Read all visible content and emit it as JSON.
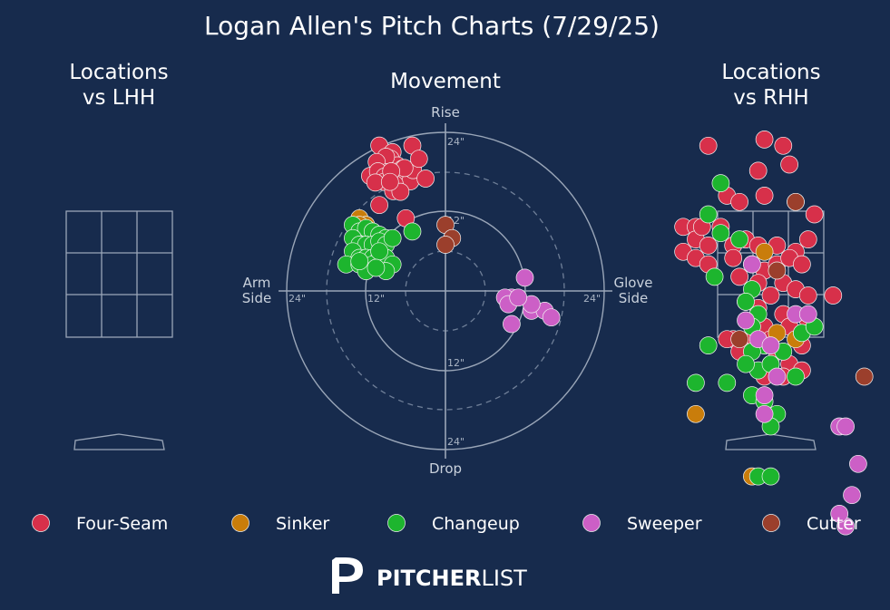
{
  "title": "Logan Allen's Pitch Charts (7/29/25)",
  "panels": {
    "lhh_title": [
      "Locations",
      "vs LHH"
    ],
    "movement_title": "Movement",
    "rhh_title": [
      "Locations",
      "vs RHH"
    ]
  },
  "movement_axes": {
    "top": "Rise",
    "bottom": "Drop",
    "left": [
      "Arm",
      "Side"
    ],
    "right": [
      "Glove",
      "Side"
    ],
    "ticks": {
      "top24": "24\"",
      "top12": "12\"",
      "bottom12": "12\"",
      "bottom24": "24\"",
      "left24": "24\"",
      "left12": "12\"",
      "right24": "24\""
    }
  },
  "legend": [
    {
      "name": "Four-Seam",
      "color": "#d7304a"
    },
    {
      "name": "Sinker",
      "color": "#c97d0b"
    },
    {
      "name": "Changeup",
      "color": "#1db52e"
    },
    {
      "name": "Sweeper",
      "color": "#cc5fc6"
    },
    {
      "name": "Cutter",
      "color": "#9b3f2c"
    }
  ],
  "brand": {
    "bold": "PITCHER",
    "light": "LIST"
  },
  "chart_data": {
    "type": "scatter",
    "movement": {
      "units": "inches",
      "xlim": [
        -24,
        24
      ],
      "ylim": [
        -24,
        24
      ],
      "series": [
        {
          "name": "Four-Seam",
          "color": "#d7304a",
          "points": [
            [
              -10,
              22
            ],
            [
              -8,
              21
            ],
            [
              -8.3,
              20
            ],
            [
              -7.3,
              19
            ],
            [
              -6.5,
              18.5
            ],
            [
              -9,
              20.3
            ],
            [
              -10.4,
              19.5
            ],
            [
              -11.4,
              17.4
            ],
            [
              -9.7,
              16.8
            ],
            [
              -8.8,
              18
            ],
            [
              -8,
              17
            ],
            [
              -6.6,
              17
            ],
            [
              -5.3,
              16.6
            ],
            [
              -4.9,
              18.3
            ],
            [
              -6.2,
              18.6
            ],
            [
              -10.2,
              18.1
            ],
            [
              -9.2,
              17.3
            ],
            [
              -7.7,
              16.2
            ],
            [
              -9.3,
              16.5
            ],
            [
              -10.6,
              16.4
            ],
            [
              -7.9,
              15.1
            ],
            [
              -6.8,
              15
            ],
            [
              -10,
              13
            ],
            [
              -6,
              11
            ],
            [
              -8.2,
              18.1
            ],
            [
              -8.4,
              16.5
            ],
            [
              -5,
              22
            ],
            [
              -4,
              20
            ],
            [
              -3,
              17
            ]
          ]
        },
        {
          "name": "Sinker",
          "color": "#c97d0b",
          "points": [
            [
              -13,
              11
            ],
            [
              -12,
              10
            ],
            [
              -13,
              10
            ]
          ]
        },
        {
          "name": "Changeup",
          "color": "#1db52e",
          "points": [
            [
              -14,
              10
            ],
            [
              -13,
              9
            ],
            [
              -12,
              9.5
            ],
            [
              -11,
              9
            ],
            [
              -10,
              8.5
            ],
            [
              -9,
              8
            ],
            [
              -14,
              8
            ],
            [
              -13,
              7
            ],
            [
              -12,
              7
            ],
            [
              -11,
              7
            ],
            [
              -10,
              7.5
            ],
            [
              -9,
              7
            ],
            [
              -8,
              8
            ],
            [
              -14,
              6
            ],
            [
              -13,
              5
            ],
            [
              -12,
              5
            ],
            [
              -11,
              5
            ],
            [
              -10,
              5
            ],
            [
              -9,
              5
            ],
            [
              -15,
              4
            ],
            [
              -13,
              4
            ],
            [
              -11,
              4
            ],
            [
              -8,
              4
            ],
            [
              -9,
              3
            ],
            [
              -5,
              9
            ],
            [
              -10,
              6
            ],
            [
              -12,
              3
            ],
            [
              -13,
              4.5
            ],
            [
              -10.5,
              3.5
            ]
          ]
        },
        {
          "name": "Sweeper",
          "color": "#cc5fc6",
          "points": [
            [
              12,
              2
            ],
            [
              10,
              -1
            ],
            [
              9,
              -1
            ],
            [
              9.5,
              -2
            ],
            [
              13,
              -3
            ],
            [
              15,
              -3
            ],
            [
              16,
              -4
            ],
            [
              10,
              -5
            ],
            [
              13,
              -2
            ],
            [
              11,
              -1
            ]
          ]
        },
        {
          "name": "Cutter",
          "color": "#9b3f2c",
          "points": [
            [
              0,
              10
            ],
            [
              1,
              8
            ],
            [
              0,
              7
            ]
          ]
        }
      ]
    },
    "locations_vs_lhh": {
      "series": []
    },
    "locations_vs_rhh": {
      "units": "inches from plate center",
      "series": [
        {
          "name": "Four-Seam",
          "color": "#d7304a",
          "points": [
            [
              -10,
              41
            ],
            [
              -1,
              42
            ],
            [
              2,
              41
            ],
            [
              -2,
              37
            ],
            [
              3,
              38
            ],
            [
              -7,
              33
            ],
            [
              -5,
              32
            ],
            [
              -1,
              33
            ],
            [
              4,
              32
            ],
            [
              7,
              30
            ],
            [
              -14,
              28
            ],
            [
              -12,
              28
            ],
            [
              -8,
              28
            ],
            [
              -12,
              26
            ],
            [
              -10,
              25
            ],
            [
              -6,
              25
            ],
            [
              -4,
              26
            ],
            [
              -2,
              25
            ],
            [
              1,
              25
            ],
            [
              4,
              24
            ],
            [
              6,
              26
            ],
            [
              -14,
              24
            ],
            [
              -12,
              23
            ],
            [
              -10,
              22
            ],
            [
              -6,
              23
            ],
            [
              -3,
              22
            ],
            [
              -1,
              21
            ],
            [
              1,
              22
            ],
            [
              3,
              23
            ],
            [
              5,
              22
            ],
            [
              -5,
              20
            ],
            [
              -2,
              19
            ],
            [
              0,
              17
            ],
            [
              2,
              19
            ],
            [
              4,
              18
            ],
            [
              6,
              17
            ],
            [
              -4,
              16
            ],
            [
              -2,
              15
            ],
            [
              2,
              14
            ],
            [
              -1,
              12
            ],
            [
              3,
              12
            ],
            [
              6,
              13
            ],
            [
              -6,
              10
            ],
            [
              -3,
              10
            ],
            [
              0,
              10
            ],
            [
              1,
              8
            ],
            [
              5,
              9
            ],
            [
              -4,
              8
            ],
            [
              0,
              6
            ],
            [
              3,
              6
            ],
            [
              5,
              5
            ],
            [
              -1,
              4
            ],
            [
              2,
              4
            ],
            [
              -7,
              10
            ],
            [
              -5,
              8
            ],
            [
              6,
              13
            ],
            [
              10,
              17
            ],
            [
              -11,
              28
            ]
          ]
        },
        {
          "name": "Sinker",
          "color": "#c97d0b",
          "points": [
            [
              -12,
              -2
            ],
            [
              -3,
              -12
            ],
            [
              -1,
              24
            ],
            [
              4,
              10
            ],
            [
              5,
              11
            ],
            [
              1,
              11
            ]
          ]
        },
        {
          "name": "Changeup",
          "color": "#1db52e",
          "points": [
            [
              -8,
              35
            ],
            [
              -10,
              30
            ],
            [
              -8,
              27
            ],
            [
              -5,
              26
            ],
            [
              -9,
              20
            ],
            [
              -3,
              18
            ],
            [
              -4,
              16
            ],
            [
              -2,
              14
            ],
            [
              -3,
              12
            ],
            [
              -1,
              9
            ],
            [
              -3,
              8
            ],
            [
              -2,
              5
            ],
            [
              0,
              6
            ],
            [
              2,
              8
            ],
            [
              4,
              4
            ],
            [
              -4,
              6
            ],
            [
              -10,
              9
            ],
            [
              -12,
              3
            ],
            [
              -7,
              3
            ],
            [
              -3,
              1
            ],
            [
              -1,
              0
            ],
            [
              1,
              -2
            ],
            [
              -2,
              -12
            ],
            [
              0,
              -12
            ],
            [
              0,
              -4
            ],
            [
              5,
              11
            ],
            [
              7,
              12
            ]
          ]
        },
        {
          "name": "Sweeper",
          "color": "#cc5fc6",
          "points": [
            [
              -3,
              22
            ],
            [
              -4,
              13
            ],
            [
              -2,
              10
            ],
            [
              0,
              9
            ],
            [
              1,
              4
            ],
            [
              -1,
              1
            ],
            [
              -1,
              -2
            ],
            [
              11,
              -4
            ],
            [
              12,
              -4
            ],
            [
              14,
              -10
            ],
            [
              12,
              -20
            ],
            [
              11,
              -18
            ],
            [
              13,
              -15
            ],
            [
              4,
              14
            ],
            [
              6,
              14
            ]
          ]
        },
        {
          "name": "Cutter",
          "color": "#9b3f2c",
          "points": [
            [
              4,
              32
            ],
            [
              15,
              4
            ],
            [
              -5,
              10
            ],
            [
              1,
              21
            ]
          ]
        }
      ]
    }
  }
}
